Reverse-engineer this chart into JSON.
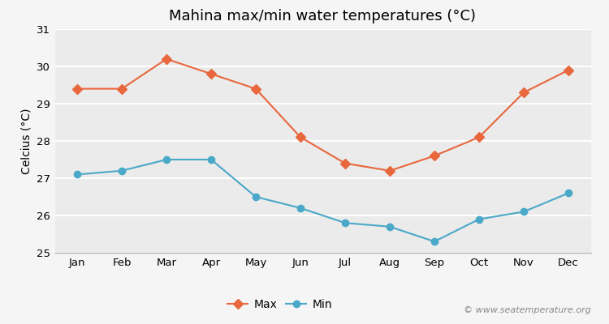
{
  "title": "Mahina max/min water temperatures (°C)",
  "ylabel": "Celcius (°C)",
  "months": [
    "Jan",
    "Feb",
    "Mar",
    "Apr",
    "May",
    "Jun",
    "Jul",
    "Aug",
    "Sep",
    "Oct",
    "Nov",
    "Dec"
  ],
  "max_temps": [
    29.4,
    29.4,
    30.2,
    29.8,
    29.4,
    28.1,
    27.4,
    27.2,
    27.6,
    28.1,
    29.3,
    29.9
  ],
  "min_temps": [
    27.1,
    27.2,
    27.5,
    27.5,
    26.5,
    26.2,
    25.8,
    25.7,
    25.3,
    25.9,
    26.1,
    26.6
  ],
  "max_color": "#e8673c",
  "min_color": "#4aa8c8",
  "fig_bg_color": "#f5f5f5",
  "plot_bg_color": "#ebebeb",
  "ylim": [
    25,
    31
  ],
  "yticks": [
    25,
    26,
    27,
    28,
    29,
    30,
    31
  ],
  "legend_labels": [
    "Max",
    "Min"
  ],
  "watermark": "© www.seatemperature.org",
  "title_fontsize": 13,
  "axis_label_fontsize": 10,
  "tick_fontsize": 9.5,
  "legend_fontsize": 10
}
